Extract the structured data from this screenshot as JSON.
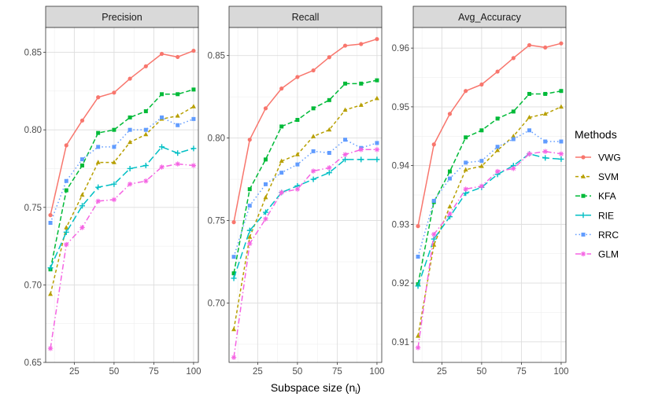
{
  "chart_data": {
    "type": "line",
    "x": [
      10,
      20,
      30,
      40,
      50,
      60,
      70,
      80,
      90,
      100
    ],
    "xlabel": "Subspace size (n",
    "xlabel_sub": "i",
    "xlabel_close": ")",
    "xlim": [
      7,
      103
    ],
    "xticks": [
      25,
      50,
      75,
      100
    ],
    "xtick_labels": [
      "25",
      "50",
      "75",
      "100"
    ],
    "legend_title": "Methods",
    "legend_position": "right",
    "series_styles": [
      {
        "name": "VWG",
        "color": "#F8766D",
        "dash": "",
        "marker": "circle"
      },
      {
        "name": "SVM",
        "color": "#B79F00",
        "dash": "4,3",
        "marker": "triangle"
      },
      {
        "name": "KFA",
        "color": "#00BA38",
        "dash": "6,3",
        "marker": "square"
      },
      {
        "name": "RIE",
        "color": "#00BFC4",
        "dash": "9,4",
        "marker": "plus"
      },
      {
        "name": "RRC",
        "color": "#619CFF",
        "dash": "1.5,3",
        "marker": "square"
      },
      {
        "name": "GLM",
        "color": "#F564E3",
        "dash": "7,3,1.5,3",
        "marker": "star"
      }
    ],
    "panels": [
      {
        "title": "Precision",
        "ylim": [
          0.65,
          0.866
        ],
        "yticks": [
          0.65,
          0.7,
          0.75,
          0.8,
          0.85
        ],
        "ytick_labels": [
          "0.65",
          "0.70",
          "0.75",
          "0.80",
          "0.85"
        ],
        "series": [
          {
            "name": "VWG",
            "values": [
              0.745,
              0.79,
              0.806,
              0.821,
              0.824,
              0.833,
              0.841,
              0.849,
              0.847,
              0.851
            ]
          },
          {
            "name": "SVM",
            "values": [
              0.694,
              0.737,
              0.758,
              0.779,
              0.779,
              0.792,
              0.797,
              0.807,
              0.809,
              0.815
            ]
          },
          {
            "name": "KFA",
            "values": [
              0.71,
              0.761,
              0.777,
              0.798,
              0.8,
              0.808,
              0.812,
              0.823,
              0.823,
              0.826
            ]
          },
          {
            "name": "RIE",
            "values": [
              0.711,
              0.734,
              0.751,
              0.763,
              0.765,
              0.775,
              0.777,
              0.789,
              0.785,
              0.788
            ]
          },
          {
            "name": "RRC",
            "values": [
              0.74,
              0.767,
              0.781,
              0.789,
              0.789,
              0.8,
              0.8,
              0.808,
              0.803,
              0.807
            ]
          },
          {
            "name": "GLM",
            "values": [
              0.659,
              0.726,
              0.737,
              0.754,
              0.755,
              0.765,
              0.767,
              0.776,
              0.778,
              0.777
            ]
          }
        ]
      },
      {
        "title": "Recall",
        "ylim": [
          0.664,
          0.867
        ],
        "yticks": [
          0.7,
          0.75,
          0.8,
          0.85
        ],
        "ytick_labels": [
          "0.70",
          "0.75",
          "0.80",
          "0.85"
        ],
        "series": [
          {
            "name": "VWG",
            "values": [
              0.749,
              0.799,
              0.818,
              0.83,
              0.837,
              0.841,
              0.849,
              0.856,
              0.857,
              0.86
            ]
          },
          {
            "name": "SVM",
            "values": [
              0.684,
              0.74,
              0.764,
              0.786,
              0.79,
              0.801,
              0.805,
              0.817,
              0.82,
              0.824
            ]
          },
          {
            "name": "KFA",
            "values": [
              0.718,
              0.769,
              0.787,
              0.807,
              0.811,
              0.818,
              0.823,
              0.833,
              0.833,
              0.835
            ]
          },
          {
            "name": "RIE",
            "values": [
              0.715,
              0.744,
              0.755,
              0.767,
              0.771,
              0.775,
              0.779,
              0.787,
              0.787,
              0.787
            ]
          },
          {
            "name": "RRC",
            "values": [
              0.728,
              0.759,
              0.772,
              0.779,
              0.784,
              0.792,
              0.791,
              0.799,
              0.794,
              0.797
            ]
          },
          {
            "name": "GLM",
            "values": [
              0.667,
              0.736,
              0.751,
              0.767,
              0.769,
              0.78,
              0.782,
              0.79,
              0.793,
              0.793
            ]
          }
        ]
      },
      {
        "title": "Avg_Accuracy",
        "ylim": [
          0.9065,
          0.9635
        ],
        "yticks": [
          0.91,
          0.92,
          0.93,
          0.94,
          0.95,
          0.96
        ],
        "ytick_labels": [
          "0.91",
          "0.92",
          "0.93",
          "0.94",
          "0.95",
          "0.96"
        ],
        "series": [
          {
            "name": "VWG",
            "values": [
              0.9297,
              0.9436,
              0.9488,
              0.9527,
              0.9538,
              0.956,
              0.9583,
              0.9605,
              0.9601,
              0.9608
            ]
          },
          {
            "name": "SVM",
            "values": [
              0.911,
              0.9265,
              0.933,
              0.9393,
              0.9399,
              0.9426,
              0.945,
              0.9482,
              0.9488,
              0.95
            ]
          },
          {
            "name": "KFA",
            "values": [
              0.9198,
              0.9338,
              0.939,
              0.9448,
              0.946,
              0.948,
              0.9492,
              0.9522,
              0.9522,
              0.9527
            ]
          },
          {
            "name": "RIE",
            "values": [
              0.9195,
              0.9275,
              0.9313,
              0.9353,
              0.9363,
              0.9385,
              0.94,
              0.942,
              0.9413,
              0.9411
            ]
          },
          {
            "name": "RRC",
            "values": [
              0.9245,
              0.934,
              0.9378,
              0.9405,
              0.9408,
              0.9432,
              0.9445,
              0.946,
              0.9441,
              0.9441
            ]
          },
          {
            "name": "GLM",
            "values": [
              0.909,
              0.9283,
              0.9318,
              0.936,
              0.9365,
              0.939,
              0.9395,
              0.942,
              0.9424,
              0.942
            ]
          }
        ]
      }
    ]
  }
}
